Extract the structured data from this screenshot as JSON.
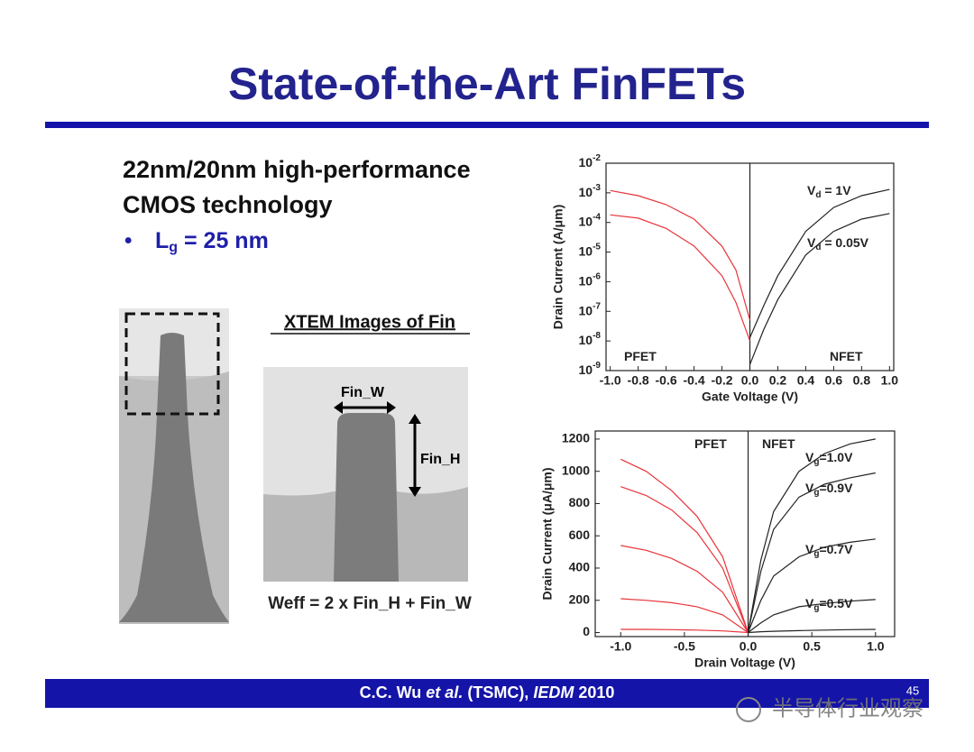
{
  "slide": {
    "title": "State-of-the-Art FinFETs",
    "lines": [
      "22nm/20nm high-performance",
      "CMOS technology"
    ],
    "bullet": {
      "mark": "•",
      "text": "L",
      "sub": "g",
      "after": " = 25 nm"
    },
    "image_caption": "XTEM Images of Fin",
    "fin_w": "Fin_W",
    "fin_h": "Fin_H",
    "formula": "Weff = 2 x Fin_H + Fin_W",
    "footer": {
      "author": "C.C. Wu ",
      "etal": "et al.",
      "org": " (TSMC), ",
      "venue": "IEDM",
      "year": " 2010"
    },
    "page_number": "45",
    "watermark": "半导体行业观察"
  },
  "chart_data": [
    {
      "type": "line",
      "log_y": true,
      "xlabel": "Gate Voltage (V)",
      "ylabel": "Drain Current (A/μm)",
      "xlim": [
        -1.03,
        1.03
      ],
      "ylim": [
        1e-09,
        0.01
      ],
      "xticks": [
        {
          "value": -1,
          "label": "-1.0"
        },
        -0.8,
        -0.6,
        -0.4,
        -0.2,
        {
          "value": 0,
          "label": "0.0"
        },
        0.2,
        0.4,
        0.6,
        0.8,
        {
          "value": 1,
          "label": "1.0"
        }
      ],
      "yticks": [
        {
          "value": 1e-09,
          "label": "10",
          "exponent": "-9"
        },
        {
          "value": 1e-08,
          "label": "10",
          "exponent": "-8"
        },
        {
          "value": 1e-07,
          "label": "10",
          "exponent": "-7"
        },
        {
          "value": 1e-06,
          "label": "10",
          "exponent": "-6"
        },
        {
          "value": 1e-05,
          "label": "10",
          "exponent": "-5"
        },
        {
          "value": 0.0001,
          "label": "10",
          "exponent": "-4"
        },
        {
          "value": 0.001,
          "label": "10",
          "exponent": "-3"
        },
        {
          "value": 0.01,
          "label": "10",
          "exponent": "-2"
        }
      ],
      "series": [
        {
          "color": "#e8343a",
          "x": [
            -1,
            -0.8,
            -0.6,
            -0.4,
            -0.2,
            -0.1,
            0
          ],
          "values": [
            0.0012,
            0.0008,
            0.0004,
            0.00013,
            1.6e-05,
            2.5e-06,
            5e-08
          ]
        },
        {
          "color": "#e8343a",
          "x": [
            -1,
            -0.8,
            -0.6,
            -0.4,
            -0.2,
            -0.1,
            0
          ],
          "values": [
            0.00018,
            0.00014,
            6.3e-05,
            1.6e-05,
            1.6e-06,
            2e-07,
            1e-08
          ]
        },
        {
          "color": "#222222",
          "x": [
            0,
            0.1,
            0.2,
            0.4,
            0.6,
            0.8,
            1
          ],
          "values": [
            1.3e-08,
            1.6e-07,
            1.6e-06,
            5e-05,
            0.00032,
            0.0008,
            0.0013
          ]
        },
        {
          "color": "#222222",
          "x": [
            0,
            0.1,
            0.2,
            0.4,
            0.6,
            0.8,
            1
          ],
          "values": [
            1.6e-09,
            2.5e-08,
            2.5e-07,
            8e-06,
            5e-05,
            0.00013,
            0.0002
          ]
        }
      ],
      "annotations": [
        {
          "text": "PFET",
          "color": "#e8343a"
        },
        {
          "text": "NFET",
          "color": "#222222"
        },
        {
          "text": "V",
          "sub": "d",
          "after": " = 1V",
          "color": "#222222"
        },
        {
          "text": "V",
          "sub": "d",
          "after": " = 0.05V",
          "color": "#222222"
        }
      ]
    },
    {
      "type": "line",
      "log_y": false,
      "xlabel": "Drain Voltage (V)",
      "ylabel": "Drain Current (μA/μm)",
      "xlim": [
        -1.2,
        1.15
      ],
      "ylim": [
        -25,
        1250
      ],
      "xticks": [
        {
          "value": -1,
          "label": "-1.0"
        },
        -0.5,
        {
          "value": 0,
          "label": "0.0"
        },
        0.5,
        {
          "value": 1,
          "label": "1.0"
        }
      ],
      "yticks": [
        0,
        200,
        400,
        600,
        800,
        1000,
        1200
      ],
      "series": [
        {
          "color": "#e8343a",
          "x": [
            -1,
            -0.8,
            -0.6,
            -0.4,
            -0.2,
            0
          ],
          "values": [
            1075,
            1000,
            880,
            720,
            470,
            0
          ]
        },
        {
          "color": "#e8343a",
          "x": [
            -1,
            -0.8,
            -0.6,
            -0.4,
            -0.2,
            0
          ],
          "values": [
            905,
            850,
            760,
            620,
            400,
            0
          ]
        },
        {
          "color": "#e8343a",
          "x": [
            -1,
            -0.8,
            -0.6,
            -0.4,
            -0.2,
            0
          ],
          "values": [
            540,
            510,
            460,
            380,
            250,
            0
          ]
        },
        {
          "color": "#e8343a",
          "x": [
            -1,
            -0.8,
            -0.6,
            -0.4,
            -0.2,
            0
          ],
          "values": [
            210,
            200,
            185,
            160,
            110,
            0
          ]
        },
        {
          "color": "#e8343a",
          "x": [
            -1,
            -0.8,
            -0.6,
            -0.4,
            -0.2,
            0
          ],
          "values": [
            20,
            20,
            18,
            15,
            10,
            0
          ]
        },
        {
          "color": "#222222",
          "x": [
            0,
            0.1,
            0.2,
            0.4,
            0.6,
            0.8,
            1
          ],
          "values": [
            0,
            450,
            750,
            1000,
            1110,
            1170,
            1200
          ]
        },
        {
          "color": "#222222",
          "x": [
            0,
            0.1,
            0.2,
            0.4,
            0.6,
            0.8,
            1
          ],
          "values": [
            0,
            380,
            640,
            840,
            920,
            960,
            990
          ]
        },
        {
          "color": "#222222",
          "x": [
            0,
            0.1,
            0.2,
            0.4,
            0.6,
            0.8,
            1
          ],
          "values": [
            0,
            200,
            350,
            470,
            530,
            560,
            580
          ]
        },
        {
          "color": "#222222",
          "x": [
            0,
            0.1,
            0.2,
            0.4,
            0.6,
            0.8,
            1
          ],
          "values": [
            0,
            60,
            110,
            160,
            180,
            195,
            205
          ]
        },
        {
          "color": "#222222",
          "x": [
            0,
            0.1,
            0.2,
            0.4,
            0.6,
            0.8,
            1
          ],
          "values": [
            0,
            5,
            8,
            12,
            15,
            18,
            20
          ]
        }
      ],
      "annotations": [
        {
          "text": "PFET",
          "color": "#e8343a"
        },
        {
          "text": "NFET",
          "color": "#222222"
        },
        {
          "text": "V",
          "sub": "g",
          "after": "=1.0V",
          "color": "#222222"
        },
        {
          "text": "V",
          "sub": "g",
          "after": "=0.9V",
          "color": "#222222"
        },
        {
          "text": "V",
          "sub": "g",
          "after": "=0.7V",
          "color": "#222222"
        },
        {
          "text": "V",
          "sub": "g",
          "after": "=0.5V",
          "color": "#222222"
        }
      ]
    }
  ]
}
